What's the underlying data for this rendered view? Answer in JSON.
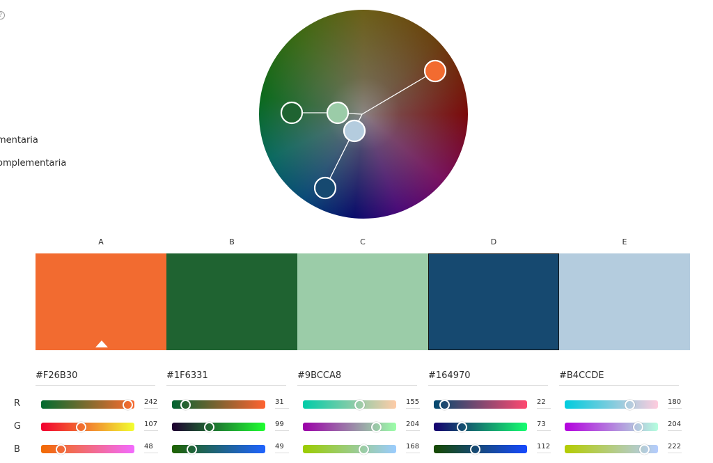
{
  "sidebar": {
    "help_icon": "question-circle-icon",
    "rules": [
      "mentaria",
      "omplementaria"
    ]
  },
  "wheel": {
    "handles": [
      {
        "id": "A",
        "hex": "#F26B30"
      },
      {
        "id": "B",
        "hex": "#1F6331"
      },
      {
        "id": "C",
        "hex": "#9BCCA8"
      },
      {
        "id": "D",
        "hex": "#164970"
      },
      {
        "id": "E",
        "hex": "#B4CCDE"
      }
    ]
  },
  "channels": [
    "R",
    "G",
    "B"
  ],
  "swatches": [
    {
      "label": "A",
      "hex": "#F26B30",
      "rgb": [
        242,
        107,
        48
      ],
      "selected": true
    },
    {
      "label": "B",
      "hex": "#1F6331",
      "rgb": [
        31,
        99,
        49
      ]
    },
    {
      "label": "C",
      "hex": "#9BCCA8",
      "rgb": [
        155,
        204,
        168
      ]
    },
    {
      "label": "D",
      "hex": "#164970",
      "rgb": [
        22,
        73,
        112
      ]
    },
    {
      "label": "E",
      "hex": "#B4CCDE",
      "rgb": [
        180,
        204,
        222
      ]
    }
  ]
}
